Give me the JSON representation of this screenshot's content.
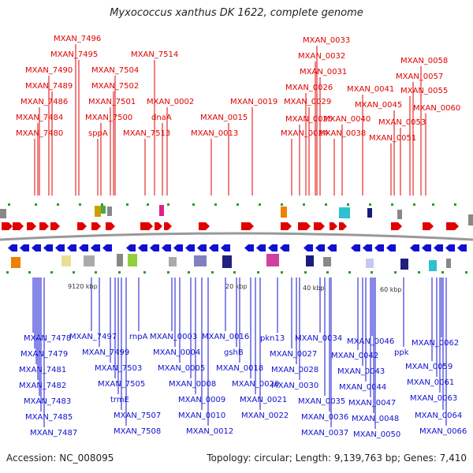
{
  "title": "Myxococcus xanthus DK 1622, complete genome",
  "footer": {
    "accession": "Accession: NC_008095",
    "summary": "Topology: circular; Length: 9,139,763 bp; Genes: 7,410"
  },
  "colors": {
    "forward": "#e00000",
    "reverse": "#1010d0",
    "backbone": "#999999",
    "tick": "#2a9d2a"
  },
  "kbp_ticks": [
    "9120 kbp",
    "20 kbp",
    "40 kbp",
    "60 kbp"
  ],
  "forward_labels": [
    "MXAN_7496",
    "MXAN_7495",
    "MXAN_7490",
    "MXAN_7489",
    "MXAN_7486",
    "MXAN_7484",
    "MXAN_7480",
    "MXAN_7504",
    "MXAN_7502",
    "MXAN_7501",
    "MXAN_7500",
    "sppA",
    "MXAN_7514",
    "MXAN_0002",
    "dnaA",
    "MXAN_7513",
    "MXAN_0015",
    "MXAN_0013",
    "MXAN_0019",
    "MXAN_0026",
    "MXAN_0025",
    "MXAN_0024",
    "MXAN_0033",
    "MXAN_0032",
    "MXAN_0031",
    "MXAN_0029",
    "MXAN_0041",
    "MXAN_0040",
    "MXAN_0038",
    "MXAN_0058",
    "MXAN_0057",
    "MXAN_0055",
    "MXAN_0045",
    "MXAN_0060",
    "MXAN_0053",
    "MXAN_0051"
  ],
  "reverse_labels": [
    "MXAN_7478",
    "MXAN_7479",
    "MXAN_7481",
    "MXAN_7482",
    "MXAN_7483",
    "MXAN_7485",
    "MXAN_7487",
    "MXAN_7497",
    "MXAN_7499",
    "MXAN_7503",
    "MXAN_7505",
    "trmE",
    "MXAN_7507",
    "MXAN_7508",
    "rnpA",
    "MXAN_0003",
    "MXAN_0004",
    "MXAN_0005",
    "MXAN_0008",
    "MXAN_0009",
    "MXAN_0010",
    "MXAN_0012",
    "MXAN_0016",
    "gshB",
    "MXAN_0018",
    "MXAN_0020",
    "MXAN_0021",
    "MXAN_0022",
    "pkn13",
    "MXAN_0027",
    "MXAN_0028",
    "MXAN_0030",
    "MXAN_0034",
    "MXAN_0035",
    "MXAN_0036",
    "MXAN_0037",
    "MXAN_0046",
    "MXAN_0042",
    "MXAN_0043",
    "MXAN_0044",
    "MXAN_0047",
    "MXAN_0048",
    "MXAN_0050",
    "ppk",
    "MXAN_0062",
    "MXAN_0059",
    "MXAN_0061",
    "MXAN_0063",
    "MXAN_0064",
    "MXAN_0066"
  ]
}
